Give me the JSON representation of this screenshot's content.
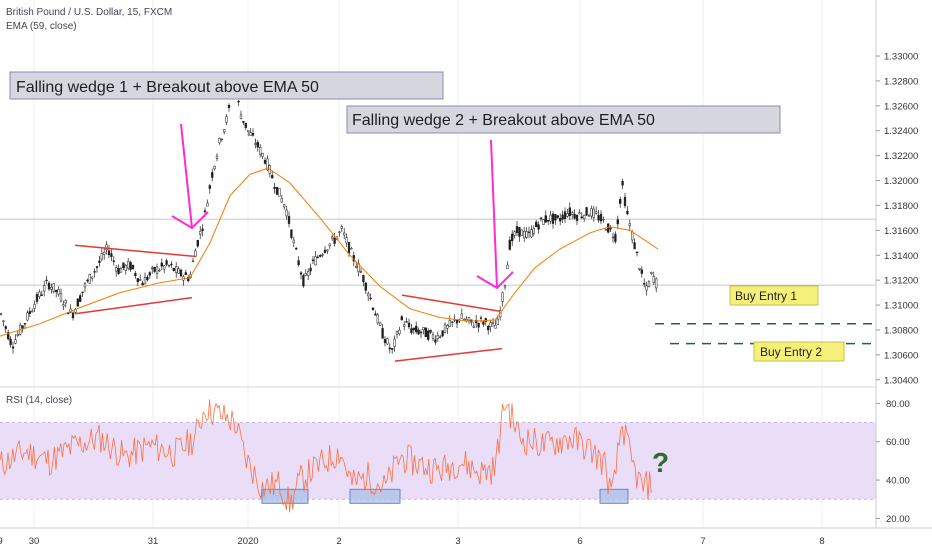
{
  "header": {
    "symbol_line": "British Pound / U.S. Dollar, 15, FXCM",
    "ema_line": "EMA (59, close)",
    "rsi_line": "RSI (14, close)"
  },
  "annotations": {
    "wedge1": "Falling wedge 1 + Breakout above EMA 50",
    "wedge2": "Falling wedge 2 + Breakout above EMA 50",
    "entry1": "Buy Entry 1",
    "entry2": "Buy Entry 2",
    "question": "?"
  },
  "colors": {
    "up": "#26a69a",
    "down": "#ef5350",
    "candle": "#1f1f1f",
    "ema": "#f57c00",
    "rsi": "#ff7043",
    "rsi_band": "#e9ddf7",
    "wedge": "#e53935",
    "arrow": "#ff2bd3",
    "label_bg": "#d6d6df",
    "entry_bg": "#f5f07a",
    "question": "#2e6b2e",
    "entry_line": "#1c5c5c"
  },
  "chart_data": [
    {
      "type": "candlestick",
      "title": "British Pound / U.S. Dollar, 15, FXCM",
      "overlay": "EMA (59, close)",
      "ylim": [
        1.3035,
        1.3345
      ],
      "yticks": [
        "1.33000",
        "1.32800",
        "1.32600",
        "1.32400",
        "1.32200",
        "1.32000",
        "1.31800",
        "1.31600",
        "1.31400",
        "1.31200",
        "1.31000",
        "1.30800",
        "1.30600",
        "1.30400"
      ],
      "xticks": [
        "30",
        "31",
        "2020",
        "2",
        "3",
        "6",
        "7",
        "8",
        "9"
      ],
      "price_path": [
        [
          0,
          1.3095
        ],
        [
          12,
          1.3068
        ],
        [
          22,
          1.3082
        ],
        [
          35,
          1.3102
        ],
        [
          48,
          1.3118
        ],
        [
          60,
          1.3108
        ],
        [
          72,
          1.3092
        ],
        [
          85,
          1.3115
        ],
        [
          98,
          1.3132
        ],
        [
          108,
          1.3146
        ],
        [
          118,
          1.3128
        ],
        [
          130,
          1.3132
        ],
        [
          142,
          1.3118
        ],
        [
          155,
          1.3128
        ],
        [
          168,
          1.3132
        ],
        [
          180,
          1.3125
        ],
        [
          190,
          1.3122
        ],
        [
          196,
          1.3146
        ],
        [
          204,
          1.3168
        ],
        [
          212,
          1.3205
        ],
        [
          220,
          1.3232
        ],
        [
          228,
          1.3252
        ],
        [
          234,
          1.3282
        ],
        [
          240,
          1.3255
        ],
        [
          248,
          1.324
        ],
        [
          256,
          1.323
        ],
        [
          266,
          1.3216
        ],
        [
          276,
          1.3195
        ],
        [
          286,
          1.3178
        ],
        [
          296,
          1.3142
        ],
        [
          304,
          1.3118
        ],
        [
          314,
          1.3135
        ],
        [
          324,
          1.3145
        ],
        [
          334,
          1.3152
        ],
        [
          342,
          1.316
        ],
        [
          352,
          1.314
        ],
        [
          362,
          1.3125
        ],
        [
          372,
          1.3102
        ],
        [
          382,
          1.3078
        ],
        [
          392,
          1.3062
        ],
        [
          402,
          1.3088
        ],
        [
          412,
          1.308
        ],
        [
          424,
          1.3078
        ],
        [
          436,
          1.3074
        ],
        [
          448,
          1.3082
        ],
        [
          460,
          1.309
        ],
        [
          472,
          1.3085
        ],
        [
          484,
          1.3087
        ],
        [
          492,
          1.3082
        ],
        [
          498,
          1.3085
        ],
        [
          504,
          1.3112
        ],
        [
          510,
          1.315
        ],
        [
          518,
          1.316
        ],
        [
          528,
          1.3155
        ],
        [
          538,
          1.3165
        ],
        [
          548,
          1.317
        ],
        [
          558,
          1.3168
        ],
        [
          568,
          1.3175
        ],
        [
          578,
          1.3172
        ],
        [
          590,
          1.3175
        ],
        [
          600,
          1.317
        ],
        [
          610,
          1.316
        ],
        [
          616,
          1.3155
        ],
        [
          622,
          1.3198
        ],
        [
          628,
          1.317
        ],
        [
          634,
          1.315
        ],
        [
          640,
          1.313
        ],
        [
          646,
          1.311
        ],
        [
          652,
          1.3125
        ],
        [
          658,
          1.3115
        ]
      ],
      "ema_path": [
        [
          0,
          1.3075
        ],
        [
          40,
          1.3085
        ],
        [
          80,
          1.3098
        ],
        [
          120,
          1.311
        ],
        [
          160,
          1.3118
        ],
        [
          190,
          1.3122
        ],
        [
          210,
          1.315
        ],
        [
          230,
          1.3188
        ],
        [
          250,
          1.3205
        ],
        [
          268,
          1.321
        ],
        [
          290,
          1.3198
        ],
        [
          320,
          1.317
        ],
        [
          350,
          1.314
        ],
        [
          380,
          1.3115
        ],
        [
          410,
          1.3097
        ],
        [
          440,
          1.309
        ],
        [
          470,
          1.3087
        ],
        [
          495,
          1.3088
        ],
        [
          515,
          1.311
        ],
        [
          535,
          1.313
        ],
        [
          560,
          1.3145
        ],
        [
          590,
          1.3158
        ],
        [
          610,
          1.3163
        ],
        [
          630,
          1.316
        ],
        [
          645,
          1.3152
        ],
        [
          658,
          1.3145
        ]
      ],
      "wedge1": {
        "upper": [
          [
            75,
            1.3148
          ],
          [
            196,
            1.3139
          ]
        ],
        "lower": [
          [
            75,
            1.3093
          ],
          [
            192,
            1.3106
          ]
        ]
      },
      "wedge2": {
        "upper": [
          [
            402,
            1.3108
          ],
          [
            500,
            1.3095
          ]
        ],
        "lower": [
          [
            395,
            1.3055
          ],
          [
            502,
            1.3065
          ]
        ]
      },
      "horizontal_levels": [
        1.3169,
        1.3116
      ],
      "buy_entries": [
        {
          "label": "Buy Entry 1",
          "price": 1.3085
        },
        {
          "label": "Buy Entry 2",
          "price": 1.3069
        }
      ]
    },
    {
      "type": "line",
      "title": "RSI (14, close)",
      "ylim": [
        15,
        88
      ],
      "yticks": [
        "80.00",
        "60.00",
        "40.00",
        "20.00"
      ],
      "band": [
        30,
        70
      ],
      "rsi_path": [
        [
          0,
          48
        ],
        [
          25,
          55
        ],
        [
          50,
          50
        ],
        [
          75,
          58
        ],
        [
          100,
          62
        ],
        [
          125,
          52
        ],
        [
          150,
          58
        ],
        [
          175,
          54
        ],
        [
          195,
          62
        ],
        [
          205,
          78
        ],
        [
          220,
          74
        ],
        [
          235,
          70
        ],
        [
          245,
          52
        ],
        [
          262,
          36
        ],
        [
          280,
          38
        ],
        [
          290,
          27
        ],
        [
          300,
          40
        ],
        [
          320,
          48
        ],
        [
          340,
          55
        ],
        [
          352,
          38
        ],
        [
          368,
          42
        ],
        [
          385,
          36
        ],
        [
          400,
          52
        ],
        [
          420,
          48
        ],
        [
          440,
          45
        ],
        [
          460,
          50
        ],
        [
          480,
          44
        ],
        [
          495,
          46
        ],
        [
          505,
          82
        ],
        [
          520,
          62
        ],
        [
          545,
          58
        ],
        [
          570,
          62
        ],
        [
          590,
          56
        ],
        [
          605,
          48
        ],
        [
          612,
          30
        ],
        [
          622,
          70
        ],
        [
          632,
          48
        ],
        [
          642,
          36
        ],
        [
          652,
          38
        ]
      ],
      "oversold_boxes": [
        [
          262,
          308
        ],
        [
          350,
          400
        ],
        [
          600,
          628
        ]
      ]
    }
  ]
}
